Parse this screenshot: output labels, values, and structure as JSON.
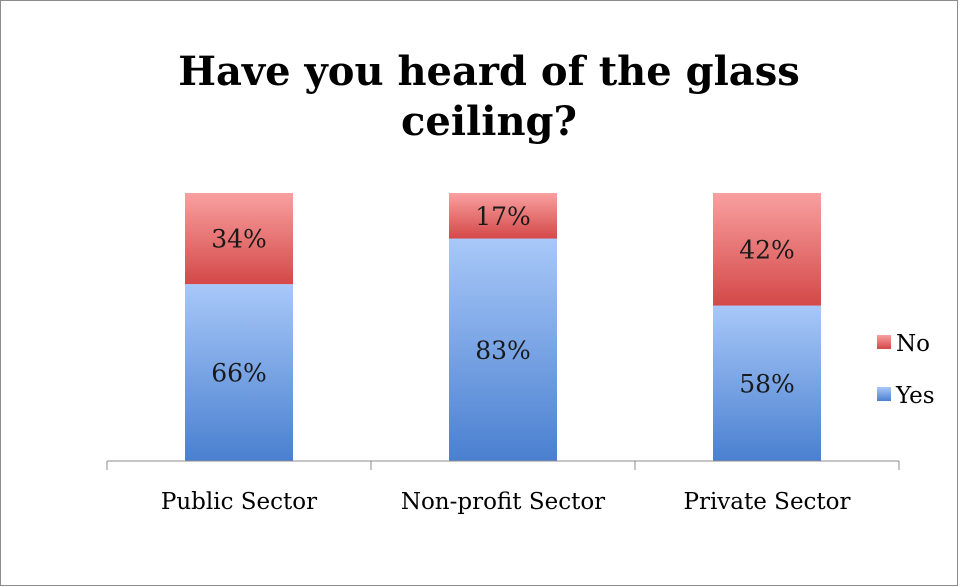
{
  "chart_data": {
    "type": "bar",
    "stacked": true,
    "percent_stacked": true,
    "title": "Have you heard of the glass ceiling?",
    "title_lines": [
      "Have you heard of the glass",
      "ceiling?"
    ],
    "categories": [
      "Public Sector",
      "Non-profit Sector",
      "Private Sector"
    ],
    "series": [
      {
        "name": "Yes",
        "values": [
          66,
          83,
          58
        ],
        "labels": [
          "66%",
          "83%",
          "58%"
        ],
        "color_light": "#a8c8f8",
        "color_dark": "#4a80d0"
      },
      {
        "name": "No",
        "values": [
          34,
          17,
          42
        ],
        "labels": [
          "34%",
          "17%",
          "42%"
        ],
        "color_light": "#f9a0a0",
        "color_dark": "#d44848"
      }
    ],
    "ylim": [
      0,
      100
    ],
    "xlabel": "",
    "ylabel": "",
    "grid": false,
    "legend": {
      "position": "right",
      "order": [
        "No",
        "Yes"
      ]
    }
  }
}
